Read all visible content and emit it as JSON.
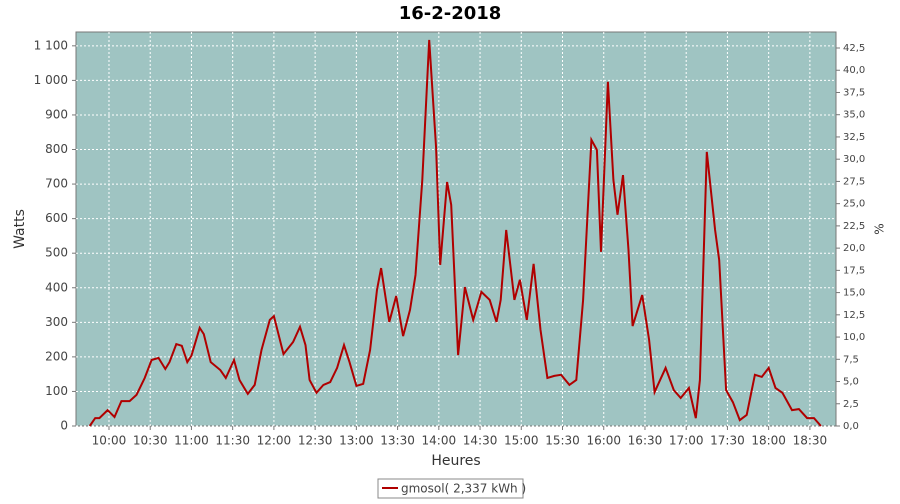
{
  "chart_data": {
    "type": "line",
    "title": "16-2-2018",
    "xlabel": "Heures",
    "ylabel": "Watts",
    "y2label": "%",
    "x": [
      "09:46",
      "09:50",
      "09:53",
      "09:59",
      "10:04",
      "10:09",
      "10:15",
      "10:20",
      "10:26",
      "10:31",
      "10:36",
      "10:41",
      "10:44",
      "10:49",
      "10:53",
      "10:57",
      "11:00",
      "11:06",
      "11:09",
      "11:14",
      "11:21",
      "11:25",
      "11:31",
      "11:35",
      "11:41",
      "11:46",
      "11:51",
      "11:57",
      "12:00",
      "12:07",
      "12:14",
      "12:19",
      "12:23",
      "12:26",
      "12:31",
      "12:36",
      "12:41",
      "12:46",
      "12:51",
      "12:55",
      "13:00",
      "13:05",
      "13:10",
      "13:15",
      "13:18",
      "13:24",
      "13:29",
      "13:34",
      "13:39",
      "13:43",
      "13:48",
      "13:53",
      "13:58",
      "14:01",
      "14:06",
      "14:09",
      "14:14",
      "14:19",
      "14:25",
      "14:31",
      "14:37",
      "14:42",
      "14:45",
      "14:49",
      "14:55",
      "14:59",
      "15:04",
      "15:09",
      "15:14",
      "15:19",
      "15:24",
      "15:29",
      "15:35",
      "15:40",
      "15:45",
      "15:51",
      "15:55",
      "15:58",
      "16:03",
      "16:07",
      "16:10",
      "16:14",
      "16:18",
      "16:21",
      "16:28",
      "16:33",
      "16:37",
      "16:45",
      "16:51",
      "16:56",
      "17:02",
      "17:07",
      "17:10",
      "17:15",
      "17:21",
      "17:24",
      "17:29",
      "17:34",
      "17:39",
      "17:44",
      "17:50",
      "17:55",
      "18:00",
      "18:05",
      "18:10",
      "18:17",
      "18:22",
      "18:28",
      "18:33",
      "18:38"
    ],
    "series": [
      {
        "name": "gmosol( 2,337 kWh )",
        "color": "#b00000",
        "values": [
          0,
          23,
          23,
          46,
          26,
          72,
          72,
          90,
          139,
          191,
          197,
          165,
          185,
          237,
          232,
          185,
          203,
          284,
          266,
          185,
          162,
          139,
          191,
          133,
          93,
          119,
          220,
          307,
          318,
          208,
          243,
          287,
          234,
          133,
          96,
          119,
          127,
          168,
          234,
          185,
          116,
          122,
          220,
          394,
          457,
          301,
          376,
          260,
          336,
          437,
          712,
          1117,
          805,
          466,
          706,
          640,
          205,
          402,
          307,
          388,
          365,
          301,
          365,
          567,
          365,
          423,
          307,
          469,
          278,
          139,
          145,
          148,
          119,
          133,
          365,
          828,
          799,
          504,
          996,
          712,
          611,
          726,
          509,
          289,
          379,
          249,
          98,
          168,
          104,
          81,
          110,
          23,
          133,
          793,
          567,
          480,
          104,
          69,
          17,
          32,
          148,
          142,
          168,
          110,
          96,
          46,
          49,
          23,
          23,
          0
        ]
      }
    ],
    "xlim": [
      "09:36",
      "18:49"
    ],
    "xticks": [
      "10:00",
      "10:30",
      "11:00",
      "11:30",
      "12:00",
      "12:30",
      "13:00",
      "13:30",
      "14:00",
      "14:30",
      "15:00",
      "15:30",
      "16:00",
      "16:30",
      "17:00",
      "17:30",
      "18:00",
      "18:30"
    ],
    "ylim": [
      0,
      1140
    ],
    "yticks": [
      0,
      100,
      200,
      300,
      400,
      500,
      600,
      700,
      800,
      900,
      {
        "value": 1000,
        "label": "1 000"
      },
      {
        "value": 1100,
        "label": "1 100"
      }
    ],
    "y2lim": [
      0,
      44.3
    ],
    "y2ticks": [
      {
        "value": 0,
        "label": "0,0"
      },
      {
        "value": 2.5,
        "label": "2,5"
      },
      {
        "value": 5,
        "label": "5,0"
      },
      {
        "value": 7.5,
        "label": "7,5"
      },
      {
        "value": 10,
        "label": "10,0"
      },
      {
        "value": 12.5,
        "label": "12,5"
      },
      {
        "value": 15,
        "label": "15,0"
      },
      {
        "value": 17.5,
        "label": "17,5"
      },
      {
        "value": 20,
        "label": "20,0"
      },
      {
        "value": 22.5,
        "label": "22,5"
      },
      {
        "value": 25,
        "label": "25,0"
      },
      {
        "value": 27.5,
        "label": "27,5"
      },
      {
        "value": 30,
        "label": "30,0"
      },
      {
        "value": 32.5,
        "label": "32,5"
      },
      {
        "value": 35,
        "label": "35,0"
      },
      {
        "value": 37.5,
        "label": "37,5"
      },
      {
        "value": 40,
        "label": "40,0"
      },
      {
        "value": 42.5,
        "label": "42,5"
      }
    ],
    "grid": true,
    "background": "#9fc4c2"
  }
}
